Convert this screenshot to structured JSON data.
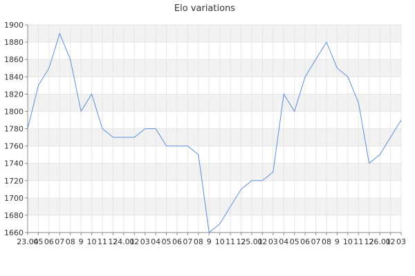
{
  "chart_data": {
    "type": "line",
    "title": "Elo variations",
    "xlabel": "",
    "ylabel": "",
    "ylim": [
      1660,
      1900
    ],
    "y_ticks": [
      1660,
      1680,
      1700,
      1720,
      1740,
      1760,
      1780,
      1800,
      1820,
      1840,
      1860,
      1880,
      1900
    ],
    "x_tick_labels": [
      "23.04",
      "05",
      "06",
      "07",
      "08",
      "9",
      "10",
      "11",
      "12",
      "24.01",
      "02",
      "03",
      "04",
      "05",
      "06",
      "07",
      "08",
      "9",
      "10",
      "11",
      "12",
      "25.01",
      "02",
      "03",
      "04",
      "05",
      "06",
      "07",
      "08",
      "9",
      "10",
      "11",
      "12",
      "26.01",
      "02",
      "03"
    ],
    "grid": true,
    "legend": "none",
    "series": [
      {
        "color": "#5b8fd9",
        "values": [
          1780,
          1830,
          1850,
          1890,
          1860,
          1800,
          1820,
          1780,
          1770,
          1770,
          1770,
          1780,
          1780,
          1760,
          1760,
          1760,
          1750,
          1660,
          1670,
          1690,
          1710,
          1720,
          1720,
          1730,
          1820,
          1800,
          1840,
          1860,
          1880,
          1850,
          1840,
          1810,
          1740,
          1750,
          1770,
          1790
        ]
      }
    ]
  }
}
